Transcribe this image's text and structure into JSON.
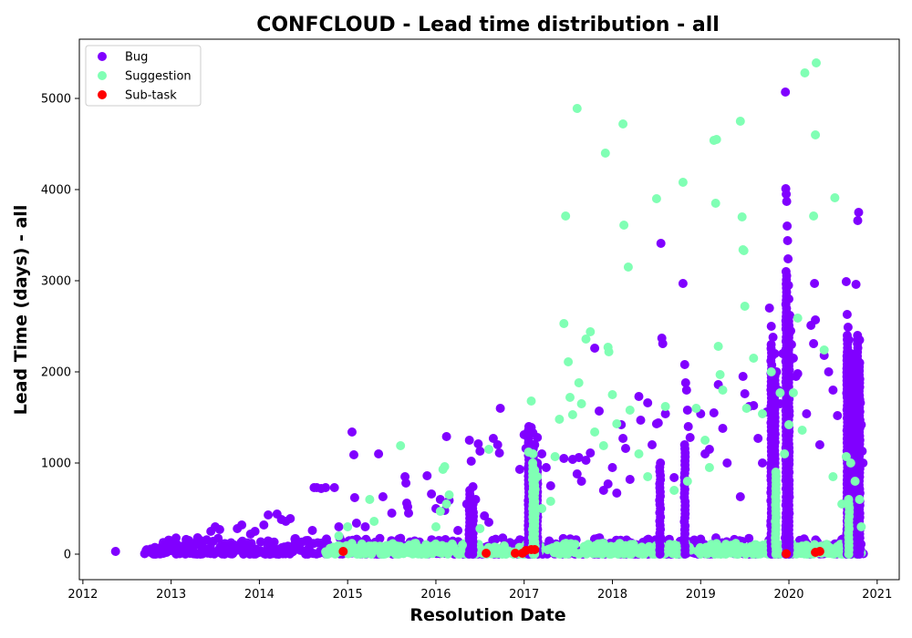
{
  "chart_data": {
    "type": "scatter",
    "title": "CONFCLOUD - Lead time distribution - all",
    "xlabel": "Resolution Date",
    "ylabel": "Lead Time (days) - all",
    "xlim": [
      2011.96,
      2021.25
    ],
    "ylim": [
      -280,
      5650
    ],
    "xticks": [
      2012,
      2013,
      2014,
      2015,
      2016,
      2017,
      2018,
      2019,
      2020,
      2021
    ],
    "yticks": [
      0,
      1000,
      2000,
      3000,
      4000,
      5000
    ],
    "grid": false,
    "legend_position": "top-left",
    "series": [
      {
        "name": "Bug",
        "color": "#8000ff",
        "points": [
          [
            2012.37,
            30
          ],
          [
            2012.7,
            5
          ],
          [
            2012.85,
            10
          ],
          [
            2012.95,
            20
          ],
          [
            2013.0,
            40
          ],
          [
            2013.05,
            60
          ],
          [
            2013.15,
            30
          ],
          [
            2013.2,
            150
          ],
          [
            2013.3,
            180
          ],
          [
            2013.35,
            90
          ],
          [
            2013.45,
            250
          ],
          [
            2013.5,
            300
          ],
          [
            2013.55,
            270
          ],
          [
            2013.65,
            60
          ],
          [
            2013.75,
            280
          ],
          [
            2013.8,
            320
          ],
          [
            2013.9,
            220
          ],
          [
            2013.95,
            250
          ],
          [
            2014.05,
            320
          ],
          [
            2014.1,
            430
          ],
          [
            2014.2,
            440
          ],
          [
            2014.25,
            380
          ],
          [
            2014.3,
            360
          ],
          [
            2014.35,
            390
          ],
          [
            2014.45,
            100
          ],
          [
            2014.55,
            150
          ],
          [
            2014.6,
            260
          ],
          [
            2014.62,
            730
          ],
          [
            2014.65,
            730
          ],
          [
            2014.7,
            720
          ],
          [
            2014.75,
            730
          ],
          [
            2014.85,
            730
          ],
          [
            2014.9,
            300
          ],
          [
            2015.05,
            1340
          ],
          [
            2015.07,
            1090
          ],
          [
            2015.08,
            620
          ],
          [
            2015.1,
            340
          ],
          [
            2015.2,
            300
          ],
          [
            2015.35,
            1100
          ],
          [
            2015.4,
            630
          ],
          [
            2015.5,
            450
          ],
          [
            2015.65,
            850
          ],
          [
            2015.66,
            780
          ],
          [
            2015.67,
            560
          ],
          [
            2015.68,
            520
          ],
          [
            2015.69,
            450
          ],
          [
            2015.9,
            860
          ],
          [
            2015.95,
            660
          ],
          [
            2016.0,
            500
          ],
          [
            2016.05,
            600
          ],
          [
            2016.1,
            480
          ],
          [
            2016.12,
            1290
          ],
          [
            2016.15,
            590
          ],
          [
            2016.25,
            260
          ],
          [
            2016.35,
            550
          ],
          [
            2016.38,
            1250
          ],
          [
            2016.4,
            1020
          ],
          [
            2016.42,
            740
          ],
          [
            2016.45,
            600
          ],
          [
            2016.48,
            1210
          ],
          [
            2016.5,
            1130
          ],
          [
            2016.55,
            420
          ],
          [
            2016.6,
            350
          ],
          [
            2016.65,
            1270
          ],
          [
            2016.7,
            1200
          ],
          [
            2016.72,
            1110
          ],
          [
            2016.73,
            1600
          ],
          [
            2016.95,
            930
          ],
          [
            2017.0,
            1310
          ],
          [
            2017.02,
            1160
          ],
          [
            2017.05,
            1230
          ],
          [
            2017.08,
            1390
          ],
          [
            2017.1,
            1330
          ],
          [
            2017.12,
            1200
          ],
          [
            2017.15,
            1280
          ],
          [
            2017.2,
            1100
          ],
          [
            2017.25,
            950
          ],
          [
            2017.3,
            750
          ],
          [
            2017.45,
            1050
          ],
          [
            2017.55,
            1040
          ],
          [
            2017.6,
            880
          ],
          [
            2017.62,
            1060
          ],
          [
            2017.65,
            800
          ],
          [
            2017.7,
            1030
          ],
          [
            2017.75,
            1110
          ],
          [
            2017.8,
            2260
          ],
          [
            2017.85,
            1570
          ],
          [
            2017.9,
            700
          ],
          [
            2017.95,
            770
          ],
          [
            2018.0,
            950
          ],
          [
            2018.05,
            670
          ],
          [
            2018.1,
            1420
          ],
          [
            2018.12,
            1270
          ],
          [
            2018.15,
            1160
          ],
          [
            2018.2,
            820
          ],
          [
            2018.3,
            1730
          ],
          [
            2018.32,
            1470
          ],
          [
            2018.4,
            1660
          ],
          [
            2018.45,
            1200
          ],
          [
            2018.5,
            1430
          ],
          [
            2018.52,
            1440
          ],
          [
            2018.55,
            3410
          ],
          [
            2018.56,
            2370
          ],
          [
            2018.57,
            2310
          ],
          [
            2018.6,
            1540
          ],
          [
            2018.7,
            840
          ],
          [
            2018.8,
            2970
          ],
          [
            2018.82,
            2080
          ],
          [
            2018.83,
            1880
          ],
          [
            2018.84,
            1800
          ],
          [
            2018.85,
            1580
          ],
          [
            2018.86,
            1400
          ],
          [
            2018.88,
            1280
          ],
          [
            2019.0,
            1540
          ],
          [
            2019.05,
            1100
          ],
          [
            2019.1,
            1150
          ],
          [
            2019.15,
            1550
          ],
          [
            2019.2,
            1860
          ],
          [
            2019.25,
            1380
          ],
          [
            2019.3,
            1000
          ],
          [
            2019.45,
            630
          ],
          [
            2019.48,
            1950
          ],
          [
            2019.5,
            1760
          ],
          [
            2019.55,
            1620
          ],
          [
            2019.6,
            1630
          ],
          [
            2019.65,
            1270
          ],
          [
            2019.7,
            1000
          ],
          [
            2019.75,
            1560
          ],
          [
            2019.78,
            2700
          ],
          [
            2019.8,
            2500
          ],
          [
            2019.82,
            2380
          ],
          [
            2019.84,
            2200
          ],
          [
            2019.86,
            2000
          ],
          [
            2019.88,
            1800
          ],
          [
            2019.9,
            1650
          ],
          [
            2019.93,
            2200
          ],
          [
            2019.96,
            5070
          ],
          [
            2019.965,
            4010
          ],
          [
            2019.97,
            3950
          ],
          [
            2019.975,
            3870
          ],
          [
            2019.98,
            3600
          ],
          [
            2019.985,
            3440
          ],
          [
            2019.99,
            3240
          ],
          [
            2019.995,
            2950
          ],
          [
            2020.0,
            2800
          ],
          [
            2020.01,
            2620
          ],
          [
            2020.02,
            2450
          ],
          [
            2020.03,
            2300
          ],
          [
            2020.05,
            2150
          ],
          [
            2020.08,
            1950
          ],
          [
            2020.1,
            1980
          ],
          [
            2020.2,
            1540
          ],
          [
            2020.25,
            2510
          ],
          [
            2020.28,
            2310
          ],
          [
            2020.29,
            2970
          ],
          [
            2020.3,
            2570
          ],
          [
            2020.35,
            1200
          ],
          [
            2020.4,
            2180
          ],
          [
            2020.45,
            2000
          ],
          [
            2020.5,
            1800
          ],
          [
            2020.55,
            1520
          ],
          [
            2020.65,
            2990
          ],
          [
            2020.66,
            2630
          ],
          [
            2020.67,
            2490
          ],
          [
            2020.68,
            2350
          ],
          [
            2020.7,
            2180
          ],
          [
            2020.72,
            2070
          ],
          [
            2020.74,
            1800
          ],
          [
            2020.76,
            2960
          ],
          [
            2020.78,
            3660
          ],
          [
            2020.79,
            3750
          ],
          [
            2020.8,
            2350
          ],
          [
            2020.81,
            1660
          ],
          [
            2020.82,
            1420
          ],
          [
            2020.83,
            1130
          ],
          [
            2020.84,
            1000
          ]
        ]
      },
      {
        "name": "Suggestion",
        "color": "#80ffb4",
        "points": [
          [
            2014.8,
            30
          ],
          [
            2014.9,
            200
          ],
          [
            2015.0,
            300
          ],
          [
            2015.1,
            60
          ],
          [
            2015.25,
            600
          ],
          [
            2015.3,
            360
          ],
          [
            2015.5,
            40
          ],
          [
            2015.6,
            1190
          ],
          [
            2015.7,
            100
          ],
          [
            2015.9,
            80
          ],
          [
            2016.0,
            300
          ],
          [
            2016.05,
            470
          ],
          [
            2016.08,
            930
          ],
          [
            2016.1,
            960
          ],
          [
            2016.12,
            550
          ],
          [
            2016.15,
            650
          ],
          [
            2016.2,
            80
          ],
          [
            2016.3,
            100
          ],
          [
            2016.5,
            280
          ],
          [
            2016.6,
            1150
          ],
          [
            2016.7,
            60
          ],
          [
            2017.05,
            1120
          ],
          [
            2017.08,
            1680
          ],
          [
            2017.1,
            1100
          ],
          [
            2017.12,
            920
          ],
          [
            2017.15,
            850
          ],
          [
            2017.2,
            500
          ],
          [
            2017.3,
            580
          ],
          [
            2017.35,
            1070
          ],
          [
            2017.4,
            1480
          ],
          [
            2017.45,
            2530
          ],
          [
            2017.47,
            3710
          ],
          [
            2017.5,
            2110
          ],
          [
            2017.52,
            1720
          ],
          [
            2017.55,
            1530
          ],
          [
            2017.6,
            4890
          ],
          [
            2017.62,
            1880
          ],
          [
            2017.65,
            1650
          ],
          [
            2017.7,
            2360
          ],
          [
            2017.75,
            2440
          ],
          [
            2017.8,
            1340
          ],
          [
            2017.9,
            1190
          ],
          [
            2017.92,
            4400
          ],
          [
            2017.95,
            2270
          ],
          [
            2017.96,
            2220
          ],
          [
            2018.0,
            1750
          ],
          [
            2018.05,
            1430
          ],
          [
            2018.12,
            4720
          ],
          [
            2018.13,
            3610
          ],
          [
            2018.18,
            3150
          ],
          [
            2018.2,
            1580
          ],
          [
            2018.3,
            1100
          ],
          [
            2018.4,
            850
          ],
          [
            2018.5,
            3900
          ],
          [
            2018.6,
            1620
          ],
          [
            2018.7,
            700
          ],
          [
            2018.8,
            4080
          ],
          [
            2018.85,
            800
          ],
          [
            2018.95,
            1600
          ],
          [
            2019.05,
            1250
          ],
          [
            2019.1,
            950
          ],
          [
            2019.15,
            4540
          ],
          [
            2019.18,
            4550
          ],
          [
            2019.17,
            3850
          ],
          [
            2019.2,
            2280
          ],
          [
            2019.22,
            1970
          ],
          [
            2019.25,
            1800
          ],
          [
            2019.45,
            4750
          ],
          [
            2019.47,
            3700
          ],
          [
            2019.48,
            3340
          ],
          [
            2019.49,
            3330
          ],
          [
            2019.5,
            2720
          ],
          [
            2019.52,
            1600
          ],
          [
            2019.6,
            2150
          ],
          [
            2019.7,
            1540
          ],
          [
            2019.8,
            2000
          ],
          [
            2019.9,
            1770
          ],
          [
            2019.95,
            1100
          ],
          [
            2020.0,
            1420
          ],
          [
            2020.05,
            1770
          ],
          [
            2020.1,
            2590
          ],
          [
            2020.15,
            1360
          ],
          [
            2020.18,
            5280
          ],
          [
            2020.28,
            3710
          ],
          [
            2020.3,
            4600
          ],
          [
            2020.31,
            5390
          ],
          [
            2020.4,
            2240
          ],
          [
            2020.5,
            850
          ],
          [
            2020.52,
            3910
          ],
          [
            2020.6,
            550
          ],
          [
            2020.65,
            1070
          ],
          [
            2020.7,
            1000
          ],
          [
            2020.75,
            800
          ],
          [
            2020.8,
            600
          ],
          [
            2020.82,
            300
          ]
        ]
      },
      {
        "name": "Sub-task",
        "color": "#ff0000",
        "points": [
          [
            2014.95,
            30
          ],
          [
            2016.57,
            10
          ],
          [
            2016.9,
            10
          ],
          [
            2016.98,
            10
          ],
          [
            2017.02,
            40
          ],
          [
            2017.08,
            50
          ],
          [
            2017.12,
            50
          ],
          [
            2019.97,
            5
          ],
          [
            2020.3,
            20
          ],
          [
            2020.35,
            30
          ]
        ]
      }
    ],
    "dense_bands": [
      {
        "series": "Bug",
        "x_range": [
          2012.7,
          2020.85
        ],
        "y_max": 180
      },
      {
        "series": "Suggestion",
        "x_range": [
          2014.75,
          2020.85
        ],
        "y_max": 120
      },
      {
        "series": "Bug",
        "columns": [
          [
            2016.38,
            700
          ],
          [
            2016.42,
            550
          ],
          [
            2017.05,
            1400
          ],
          [
            2017.1,
            1200
          ],
          [
            2017.15,
            1000
          ],
          [
            2018.54,
            1000
          ],
          [
            2018.82,
            1200
          ],
          [
            2019.8,
            2300
          ],
          [
            2019.84,
            2000
          ],
          [
            2019.97,
            3100
          ],
          [
            2020.0,
            2600
          ],
          [
            2020.66,
            2400
          ],
          [
            2020.7,
            2200
          ],
          [
            2020.78,
            2400
          ],
          [
            2020.8,
            2100
          ]
        ]
      },
      {
        "series": "Suggestion",
        "columns": [
          [
            2017.1,
            1000
          ],
          [
            2017.12,
            800
          ],
          [
            2019.85,
            900
          ],
          [
            2020.68,
            600
          ]
        ]
      }
    ]
  }
}
